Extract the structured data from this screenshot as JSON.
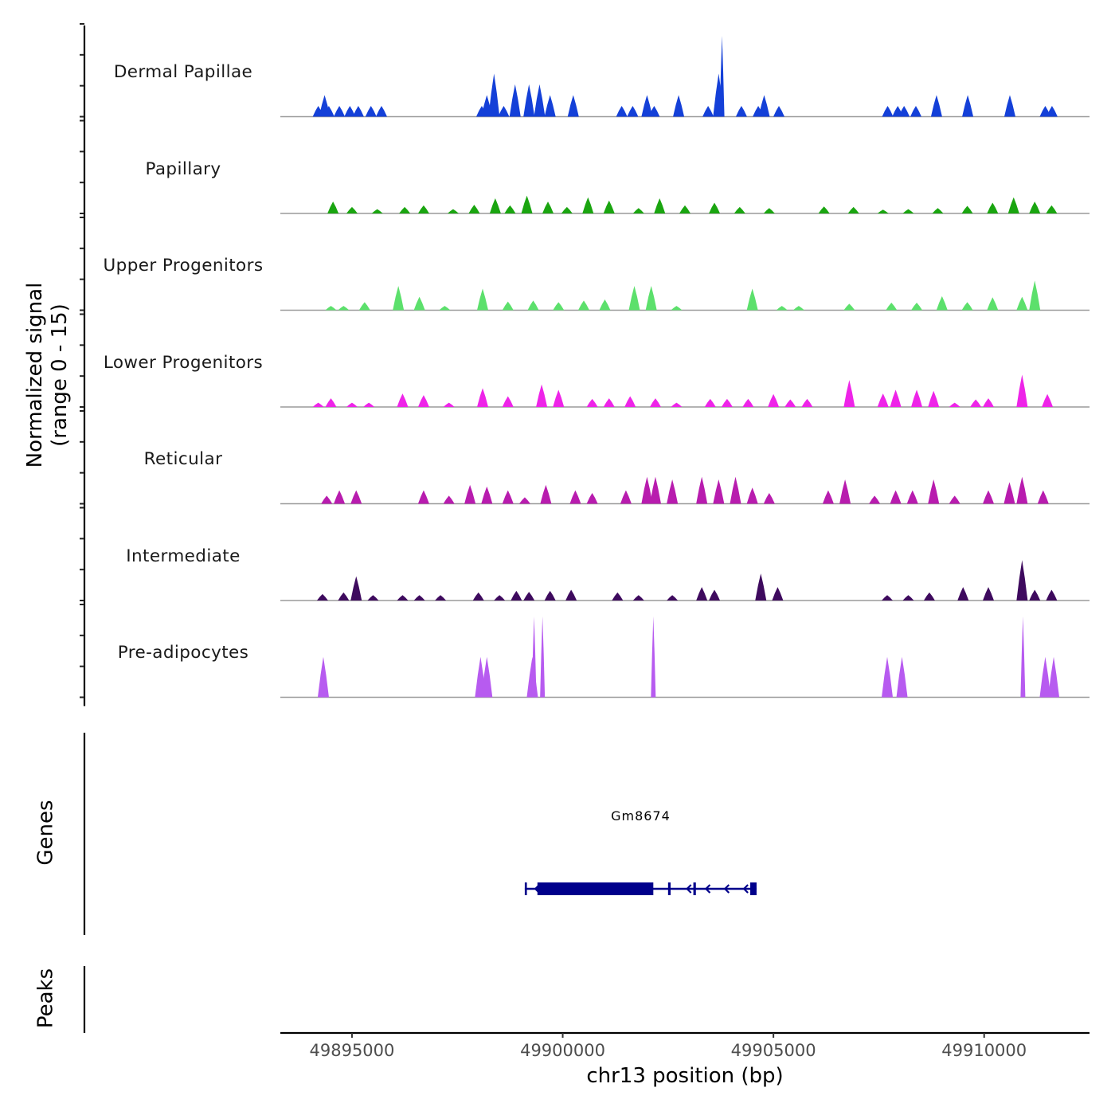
{
  "chart_data": {
    "type": "area",
    "title": "",
    "ylabel_line1": "Normalized signal",
    "ylabel_line2": "(range 0 - 15)",
    "ylim": [
      0,
      15
    ],
    "xlabel": "chr13 position (bp)",
    "xlim": [
      49893300,
      49912500
    ],
    "xticks": [
      49895000,
      49900000,
      49905000,
      49910000
    ],
    "xtick_labels": [
      "49895000",
      "49900000",
      "49905000",
      "49910000"
    ],
    "grid": false,
    "tracks": [
      {
        "name": "Dermal Papillae",
        "color": "#1440D8",
        "peaks": [
          [
            49894200,
            2
          ],
          [
            49894350,
            4
          ],
          [
            49894450,
            2
          ],
          [
            49894700,
            2
          ],
          [
            49894950,
            2
          ],
          [
            49895150,
            2
          ],
          [
            49895450,
            2
          ],
          [
            49895700,
            2
          ],
          [
            49898080,
            2
          ],
          [
            49898200,
            4
          ],
          [
            49898370,
            8
          ],
          [
            49898600,
            2
          ],
          [
            49898870,
            6
          ],
          [
            49899200,
            6
          ],
          [
            49899450,
            6
          ],
          [
            49899700,
            4
          ],
          [
            49900250,
            4
          ],
          [
            49901400,
            2
          ],
          [
            49901660,
            2
          ],
          [
            49902000,
            4
          ],
          [
            49902170,
            2
          ],
          [
            49902750,
            4
          ],
          [
            49903450,
            2
          ],
          [
            49903700,
            8
          ],
          [
            49903780,
            15
          ],
          [
            49904240,
            2
          ],
          [
            49904640,
            2
          ],
          [
            49904780,
            4
          ],
          [
            49905130,
            2
          ],
          [
            49907710,
            2
          ],
          [
            49907950,
            2
          ],
          [
            49908100,
            2
          ],
          [
            49908380,
            2
          ],
          [
            49908870,
            4
          ],
          [
            49909610,
            4
          ],
          [
            49910610,
            4
          ],
          [
            49911450,
            2
          ],
          [
            49911610,
            2
          ]
        ]
      },
      {
        "name": "Papillary",
        "color": "#1AA510",
        "peaks": [
          [
            49894550,
            2.2
          ],
          [
            49895000,
            1.2
          ],
          [
            49895600,
            0.8
          ],
          [
            49896250,
            1.2
          ],
          [
            49896700,
            1.5
          ],
          [
            49897400,
            0.8
          ],
          [
            49897900,
            1.6
          ],
          [
            49898400,
            2.8
          ],
          [
            49898750,
            1.5
          ],
          [
            49899150,
            3.3
          ],
          [
            49899650,
            2.2
          ],
          [
            49900100,
            1.2
          ],
          [
            49900600,
            3.0
          ],
          [
            49901100,
            2.4
          ],
          [
            49901800,
            1.0
          ],
          [
            49902300,
            2.8
          ],
          [
            49902900,
            1.5
          ],
          [
            49903600,
            2.0
          ],
          [
            49904200,
            1.2
          ],
          [
            49904900,
            1.0
          ],
          [
            49906200,
            1.3
          ],
          [
            49906900,
            1.2
          ],
          [
            49907600,
            0.7
          ],
          [
            49908200,
            0.8
          ],
          [
            49908900,
            1.0
          ],
          [
            49909600,
            1.4
          ],
          [
            49910200,
            2.0
          ],
          [
            49910700,
            3.0
          ],
          [
            49911200,
            2.2
          ],
          [
            49911600,
            1.5
          ]
        ]
      },
      {
        "name": "Upper Progenitors",
        "color": "#5CE06C",
        "peaks": [
          [
            49894500,
            0.8
          ],
          [
            49894800,
            0.8
          ],
          [
            49895300,
            1.5
          ],
          [
            49896100,
            4.5
          ],
          [
            49896600,
            2.5
          ],
          [
            49897200,
            0.8
          ],
          [
            49898100,
            4.0
          ],
          [
            49898700,
            1.6
          ],
          [
            49899300,
            1.8
          ],
          [
            49899900,
            1.5
          ],
          [
            49900500,
            1.8
          ],
          [
            49901000,
            2.0
          ],
          [
            49901700,
            4.5
          ],
          [
            49902100,
            4.5
          ],
          [
            49902700,
            0.8
          ],
          [
            49904500,
            4.0
          ],
          [
            49905200,
            0.8
          ],
          [
            49905600,
            0.8
          ],
          [
            49906800,
            1.2
          ],
          [
            49907800,
            1.4
          ],
          [
            49908400,
            1.4
          ],
          [
            49909000,
            2.6
          ],
          [
            49909600,
            1.5
          ],
          [
            49910200,
            2.4
          ],
          [
            49910900,
            2.5
          ],
          [
            49911200,
            5.5
          ]
        ]
      },
      {
        "name": "Lower Progenitors",
        "color": "#EE24E8",
        "peaks": [
          [
            49894200,
            0.8
          ],
          [
            49894500,
            1.6
          ],
          [
            49895000,
            0.8
          ],
          [
            49895400,
            0.8
          ],
          [
            49896200,
            2.5
          ],
          [
            49896700,
            2.2
          ],
          [
            49897300,
            0.8
          ],
          [
            49898100,
            3.5
          ],
          [
            49898700,
            2.0
          ],
          [
            49899500,
            4.2
          ],
          [
            49899900,
            3.2
          ],
          [
            49900700,
            1.5
          ],
          [
            49901100,
            1.6
          ],
          [
            49901600,
            2.0
          ],
          [
            49902200,
            1.6
          ],
          [
            49902700,
            0.8
          ],
          [
            49903500,
            1.5
          ],
          [
            49903900,
            1.5
          ],
          [
            49904400,
            1.5
          ],
          [
            49905000,
            2.4
          ],
          [
            49905400,
            1.4
          ],
          [
            49905800,
            1.5
          ],
          [
            49906800,
            5.0
          ],
          [
            49907600,
            2.5
          ],
          [
            49907900,
            3.2
          ],
          [
            49908400,
            3.2
          ],
          [
            49908800,
            3.0
          ],
          [
            49909300,
            0.8
          ],
          [
            49909800,
            1.4
          ],
          [
            49910100,
            1.6
          ],
          [
            49910900,
            6.0
          ],
          [
            49911500,
            2.4
          ]
        ]
      },
      {
        "name": "Reticular",
        "color": "#B81CAE",
        "peaks": [
          [
            49894400,
            1.5
          ],
          [
            49894700,
            2.5
          ],
          [
            49895100,
            2.5
          ],
          [
            49896700,
            2.5
          ],
          [
            49897300,
            1.5
          ],
          [
            49897800,
            3.5
          ],
          [
            49898200,
            3.2
          ],
          [
            49898700,
            2.5
          ],
          [
            49899100,
            1.2
          ],
          [
            49899600,
            3.5
          ],
          [
            49900300,
            2.5
          ],
          [
            49900700,
            2.0
          ],
          [
            49901500,
            2.5
          ],
          [
            49902000,
            5.0
          ],
          [
            49902200,
            5.0
          ],
          [
            49902600,
            4.5
          ],
          [
            49903300,
            5.0
          ],
          [
            49903700,
            4.5
          ],
          [
            49904100,
            5.0
          ],
          [
            49904500,
            3.0
          ],
          [
            49904900,
            2.0
          ],
          [
            49906300,
            2.5
          ],
          [
            49906700,
            4.5
          ],
          [
            49907400,
            1.5
          ],
          [
            49907900,
            2.5
          ],
          [
            49908300,
            2.5
          ],
          [
            49908800,
            4.5
          ],
          [
            49909300,
            1.5
          ],
          [
            49910100,
            2.5
          ],
          [
            49910600,
            4.0
          ],
          [
            49910900,
            5.0
          ],
          [
            49911400,
            2.5
          ]
        ]
      },
      {
        "name": "Intermediate",
        "color": "#3E0A5E",
        "peaks": [
          [
            49894300,
            1.2
          ],
          [
            49894800,
            1.5
          ],
          [
            49895100,
            4.5
          ],
          [
            49895500,
            1.0
          ],
          [
            49896200,
            1.0
          ],
          [
            49896600,
            1.0
          ],
          [
            49897100,
            1.0
          ],
          [
            49898000,
            1.5
          ],
          [
            49898500,
            1.0
          ],
          [
            49898900,
            1.8
          ],
          [
            49899200,
            1.6
          ],
          [
            49899700,
            1.8
          ],
          [
            49900200,
            2.0
          ],
          [
            49901300,
            1.5
          ],
          [
            49901800,
            1.0
          ],
          [
            49902600,
            1.0
          ],
          [
            49903300,
            2.5
          ],
          [
            49903600,
            2.0
          ],
          [
            49904700,
            5.0
          ],
          [
            49905100,
            2.5
          ],
          [
            49907700,
            1.0
          ],
          [
            49908200,
            1.0
          ],
          [
            49908700,
            1.5
          ],
          [
            49909500,
            2.5
          ],
          [
            49910100,
            2.5
          ],
          [
            49910900,
            7.5
          ],
          [
            49911200,
            2.0
          ],
          [
            49911600,
            2.0
          ]
        ]
      },
      {
        "name": "Pre-adipocytes",
        "color": "#B75BF0",
        "peaks": [
          [
            49894320,
            7.5
          ],
          [
            49898050,
            7.5
          ],
          [
            49898200,
            7.5
          ],
          [
            49899280,
            7.5
          ],
          [
            49899320,
            15
          ],
          [
            49899520,
            15
          ],
          [
            49902150,
            15
          ],
          [
            49907700,
            7.5
          ],
          [
            49908050,
            7.5
          ],
          [
            49910920,
            15
          ],
          [
            49911450,
            7.5
          ],
          [
            49911650,
            7.5
          ]
        ]
      }
    ],
    "genes": [
      {
        "name": "Gm8674",
        "strand": "-",
        "start": 49899100,
        "end": 49904600,
        "exons": [
          [
            49899100,
            49899150
          ],
          [
            49899400,
            49902150
          ],
          [
            49902500,
            49902560
          ],
          [
            49903100,
            49903160
          ],
          [
            49904450,
            49904600
          ]
        ],
        "color": "#00008B"
      }
    ],
    "gene_track_label": "Genes",
    "peak_track_label": "Peaks",
    "peak_regions": []
  }
}
